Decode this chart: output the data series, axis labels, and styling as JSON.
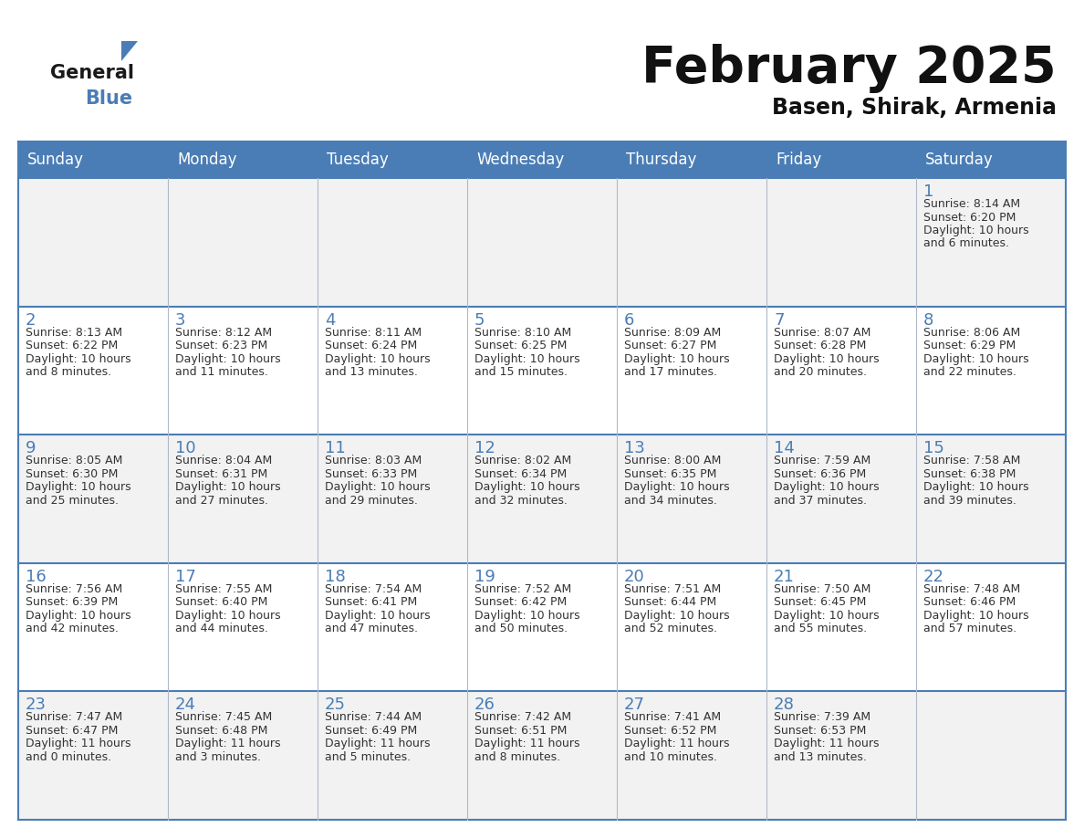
{
  "title": "February 2025",
  "subtitle": "Basen, Shirak, Armenia",
  "header_color": "#4a7db5",
  "header_text_color": "#ffffff",
  "cell_bg_white": "#ffffff",
  "cell_bg_gray": "#f2f2f2",
  "day_num_color": "#4a7db5",
  "border_color": "#4a7db5",
  "cell_border_color": "#b0b8c8",
  "days_of_week": [
    "Sunday",
    "Monday",
    "Tuesday",
    "Wednesday",
    "Thursday",
    "Friday",
    "Saturday"
  ],
  "weeks": [
    [
      {
        "day": "",
        "info": ""
      },
      {
        "day": "",
        "info": ""
      },
      {
        "day": "",
        "info": ""
      },
      {
        "day": "",
        "info": ""
      },
      {
        "day": "",
        "info": ""
      },
      {
        "day": "",
        "info": ""
      },
      {
        "day": "1",
        "info": "Sunrise: 8:14 AM\nSunset: 6:20 PM\nDaylight: 10 hours\nand 6 minutes."
      }
    ],
    [
      {
        "day": "2",
        "info": "Sunrise: 8:13 AM\nSunset: 6:22 PM\nDaylight: 10 hours\nand 8 minutes."
      },
      {
        "day": "3",
        "info": "Sunrise: 8:12 AM\nSunset: 6:23 PM\nDaylight: 10 hours\nand 11 minutes."
      },
      {
        "day": "4",
        "info": "Sunrise: 8:11 AM\nSunset: 6:24 PM\nDaylight: 10 hours\nand 13 minutes."
      },
      {
        "day": "5",
        "info": "Sunrise: 8:10 AM\nSunset: 6:25 PM\nDaylight: 10 hours\nand 15 minutes."
      },
      {
        "day": "6",
        "info": "Sunrise: 8:09 AM\nSunset: 6:27 PM\nDaylight: 10 hours\nand 17 minutes."
      },
      {
        "day": "7",
        "info": "Sunrise: 8:07 AM\nSunset: 6:28 PM\nDaylight: 10 hours\nand 20 minutes."
      },
      {
        "day": "8",
        "info": "Sunrise: 8:06 AM\nSunset: 6:29 PM\nDaylight: 10 hours\nand 22 minutes."
      }
    ],
    [
      {
        "day": "9",
        "info": "Sunrise: 8:05 AM\nSunset: 6:30 PM\nDaylight: 10 hours\nand 25 minutes."
      },
      {
        "day": "10",
        "info": "Sunrise: 8:04 AM\nSunset: 6:31 PM\nDaylight: 10 hours\nand 27 minutes."
      },
      {
        "day": "11",
        "info": "Sunrise: 8:03 AM\nSunset: 6:33 PM\nDaylight: 10 hours\nand 29 minutes."
      },
      {
        "day": "12",
        "info": "Sunrise: 8:02 AM\nSunset: 6:34 PM\nDaylight: 10 hours\nand 32 minutes."
      },
      {
        "day": "13",
        "info": "Sunrise: 8:00 AM\nSunset: 6:35 PM\nDaylight: 10 hours\nand 34 minutes."
      },
      {
        "day": "14",
        "info": "Sunrise: 7:59 AM\nSunset: 6:36 PM\nDaylight: 10 hours\nand 37 minutes."
      },
      {
        "day": "15",
        "info": "Sunrise: 7:58 AM\nSunset: 6:38 PM\nDaylight: 10 hours\nand 39 minutes."
      }
    ],
    [
      {
        "day": "16",
        "info": "Sunrise: 7:56 AM\nSunset: 6:39 PM\nDaylight: 10 hours\nand 42 minutes."
      },
      {
        "day": "17",
        "info": "Sunrise: 7:55 AM\nSunset: 6:40 PM\nDaylight: 10 hours\nand 44 minutes."
      },
      {
        "day": "18",
        "info": "Sunrise: 7:54 AM\nSunset: 6:41 PM\nDaylight: 10 hours\nand 47 minutes."
      },
      {
        "day": "19",
        "info": "Sunrise: 7:52 AM\nSunset: 6:42 PM\nDaylight: 10 hours\nand 50 minutes."
      },
      {
        "day": "20",
        "info": "Sunrise: 7:51 AM\nSunset: 6:44 PM\nDaylight: 10 hours\nand 52 minutes."
      },
      {
        "day": "21",
        "info": "Sunrise: 7:50 AM\nSunset: 6:45 PM\nDaylight: 10 hours\nand 55 minutes."
      },
      {
        "day": "22",
        "info": "Sunrise: 7:48 AM\nSunset: 6:46 PM\nDaylight: 10 hours\nand 57 minutes."
      }
    ],
    [
      {
        "day": "23",
        "info": "Sunrise: 7:47 AM\nSunset: 6:47 PM\nDaylight: 11 hours\nand 0 minutes."
      },
      {
        "day": "24",
        "info": "Sunrise: 7:45 AM\nSunset: 6:48 PM\nDaylight: 11 hours\nand 3 minutes."
      },
      {
        "day": "25",
        "info": "Sunrise: 7:44 AM\nSunset: 6:49 PM\nDaylight: 11 hours\nand 5 minutes."
      },
      {
        "day": "26",
        "info": "Sunrise: 7:42 AM\nSunset: 6:51 PM\nDaylight: 11 hours\nand 8 minutes."
      },
      {
        "day": "27",
        "info": "Sunrise: 7:41 AM\nSunset: 6:52 PM\nDaylight: 11 hours\nand 10 minutes."
      },
      {
        "day": "28",
        "info": "Sunrise: 7:39 AM\nSunset: 6:53 PM\nDaylight: 11 hours\nand 13 minutes."
      },
      {
        "day": "",
        "info": ""
      }
    ]
  ],
  "logo_text_general": "General",
  "logo_text_blue": "Blue",
  "logo_triangle_color": "#4a7db5",
  "logo_general_color": "#1a1a1a",
  "logo_blue_color": "#4a7db5",
  "figsize": [
    11.88,
    9.18
  ],
  "dpi": 100
}
